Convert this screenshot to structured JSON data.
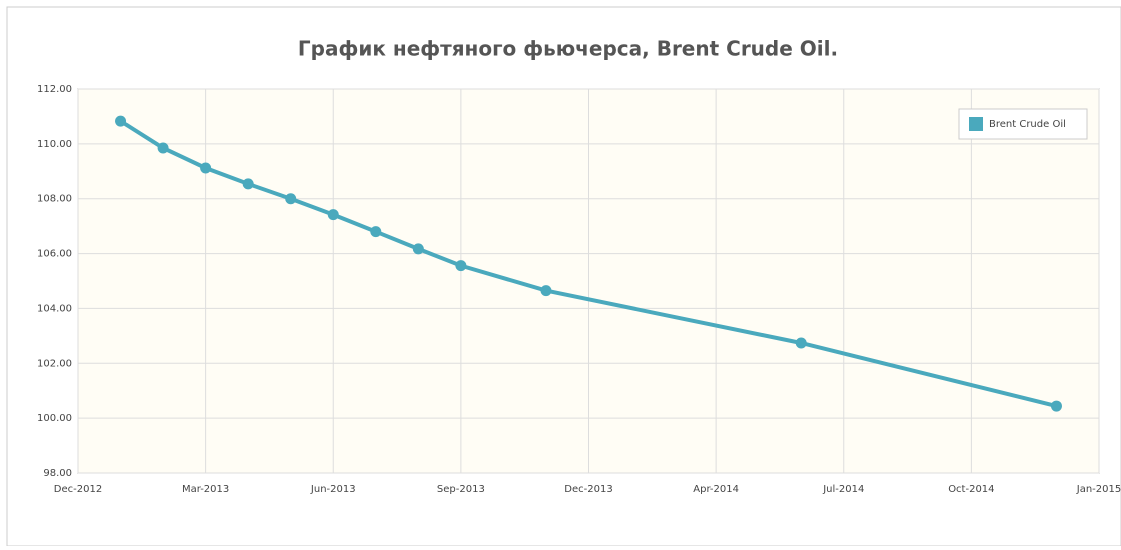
{
  "chart_data": {
    "type": "line",
    "title": "График нефтяного фьючерса, Brent Crude Oil.",
    "x": [
      "2013-01",
      "2013-02",
      "2013-03",
      "2013-04",
      "2013-05",
      "2013-06",
      "2013-07",
      "2013-08",
      "2013-09",
      "2013-11",
      "2014-06",
      "2014-12"
    ],
    "series": [
      {
        "name": "Brent Crude Oil",
        "color": "#4aa9bd",
        "values": [
          110.83,
          109.85,
          109.12,
          108.54,
          108.0,
          107.42,
          106.8,
          106.17,
          105.56,
          104.65,
          102.74,
          100.44
        ]
      }
    ],
    "xlim": [
      "2012-12",
      "2015-01"
    ],
    "xticks": [
      {
        "value": "2012-12",
        "label": "Dec-2012"
      },
      {
        "value": "2013-03",
        "label": "Mar-2013"
      },
      {
        "value": "2013-06",
        "label": "Jun-2013"
      },
      {
        "value": "2013-09",
        "label": "Sep-2013"
      },
      {
        "value": "2013-12",
        "label": "Dec-2013"
      },
      {
        "value": "2014-04",
        "label": "Apr-2014"
      },
      {
        "value": "2014-07",
        "label": "Jul-2014"
      },
      {
        "value": "2014-10",
        "label": "Oct-2014"
      },
      {
        "value": "2015-01",
        "label": "Jan-2015"
      }
    ],
    "ylim": [
      98,
      112
    ],
    "yticks": [
      {
        "value": 98,
        "label": "98.00"
      },
      {
        "value": 100,
        "label": "100.00"
      },
      {
        "value": 102,
        "label": "102.00"
      },
      {
        "value": 104,
        "label": "104.00"
      },
      {
        "value": 106,
        "label": "106.00"
      },
      {
        "value": 108,
        "label": "108.00"
      },
      {
        "value": 110,
        "label": "110.00"
      },
      {
        "value": 112,
        "label": "112.00"
      }
    ],
    "grid": true,
    "legend": "top-right"
  }
}
